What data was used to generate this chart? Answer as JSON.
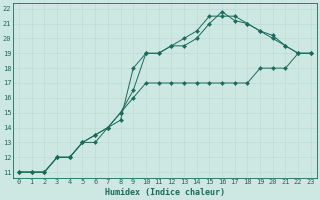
{
  "xlabel": "Humidex (Indice chaleur)",
  "bg_color": "#cde8e2",
  "line_color": "#1a6b5a",
  "grid_color": "#b8d8d0",
  "xlim_min": -0.5,
  "xlim_max": 23.5,
  "ylim_min": 10.6,
  "ylim_max": 22.4,
  "xticks": [
    0,
    1,
    2,
    3,
    4,
    5,
    6,
    7,
    8,
    9,
    10,
    11,
    12,
    13,
    14,
    15,
    16,
    17,
    18,
    19,
    20,
    21,
    22,
    23
  ],
  "yticks": [
    11,
    12,
    13,
    14,
    15,
    16,
    17,
    18,
    19,
    20,
    21,
    22
  ],
  "line1_x": [
    0,
    1,
    2,
    3,
    4,
    5,
    6,
    7,
    8,
    9,
    10,
    11,
    12,
    13,
    14,
    15,
    16,
    17,
    18,
    19,
    20,
    21,
    22,
    23
  ],
  "line1_y": [
    11,
    11,
    11,
    12,
    12,
    13,
    13,
    14,
    15,
    16,
    17,
    17,
    17,
    17,
    17,
    17,
    17,
    17,
    17,
    18,
    18,
    18,
    19,
    19
  ],
  "line2_x": [
    0,
    1,
    2,
    3,
    4,
    5,
    6,
    7,
    8,
    9,
    10,
    11,
    12,
    13,
    14,
    15,
    16,
    17,
    18,
    19,
    20,
    21,
    22,
    23
  ],
  "line2_y": [
    11,
    11,
    11,
    12,
    12,
    13,
    13.5,
    14,
    15,
    16.5,
    19,
    19,
    19.5,
    20,
    20.5,
    21.5,
    21.5,
    21.5,
    21,
    20.5,
    20,
    19.5,
    19,
    19
  ],
  "line3_x": [
    0,
    1,
    2,
    3,
    4,
    5,
    6,
    7,
    8,
    9,
    10,
    11,
    12,
    13,
    14,
    15,
    16,
    17,
    18,
    19,
    20,
    21,
    22,
    23
  ],
  "line3_y": [
    11,
    11,
    11,
    12,
    12,
    13,
    13.5,
    14,
    14.5,
    18,
    19,
    19,
    19.5,
    19.5,
    20,
    21,
    21.8,
    21.2,
    21,
    20.5,
    20.2,
    19.5,
    19,
    19
  ],
  "tick_fontsize": 5.0,
  "label_fontsize": 6.0,
  "markersize": 2.2,
  "linewidth": 0.7
}
